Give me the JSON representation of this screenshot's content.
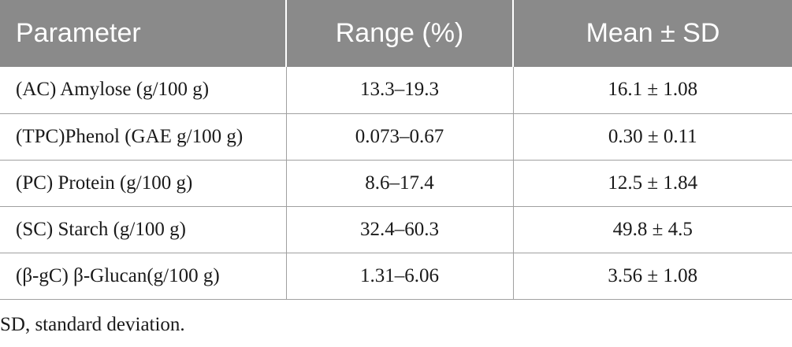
{
  "table": {
    "headers": [
      "Parameter",
      "Range (%)",
      "Mean ± SD"
    ],
    "rows": [
      [
        "(AC) Amylose (g/100 g)",
        "13.3–19.3",
        "16.1 ± 1.08"
      ],
      [
        "(TPC)Phenol (GAE g/100 g)",
        "0.073–0.67",
        "0.30 ± 0.11"
      ],
      [
        "(PC) Protein (g/100 g)",
        "8.6–17.4",
        "12.5 ± 1.84"
      ],
      [
        "(SC) Starch (g/100 g)",
        "32.4–60.3",
        "49.8 ± 4.5"
      ],
      [
        "(β-gC) β-Glucan(g/100 g)",
        "1.31–6.06",
        "3.56 ± 1.08"
      ]
    ]
  },
  "footnote": "SD, standard deviation.",
  "colors": {
    "header_bg": "#8a8a8a",
    "header_text": "#ffffff",
    "rule": "#a0a0a0",
    "body_text": "#1a1a1a"
  }
}
